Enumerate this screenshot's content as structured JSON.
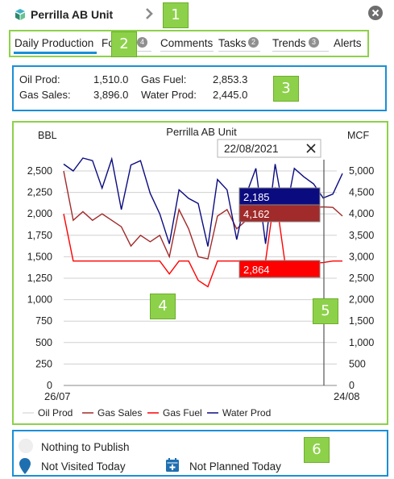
{
  "header": {
    "title": "Perrilla AB Unit",
    "icon": "cube-stack-icon",
    "chevron_icon": "chevron-right-icon",
    "close_icon": "close-circle-icon"
  },
  "callouts": [
    "1",
    "2",
    "3",
    "4",
    "5",
    "6"
  ],
  "tabs": [
    {
      "label": "Daily Production",
      "active": true
    },
    {
      "label": "Fo",
      "badge": "4"
    },
    {
      "label": "Comments"
    },
    {
      "label": "Tasks",
      "badge": "2"
    },
    {
      "label": "Trends",
      "badge": "3"
    },
    {
      "label": "Alerts"
    }
  ],
  "summary": {
    "oil_prod_label": "Oil Prod:",
    "oil_prod_value": "1,510.0",
    "gas_fuel_label": "Gas Fuel:",
    "gas_fuel_value": "2,853.3",
    "gas_sales_label": "Gas Sales:",
    "gas_sales_value": "3,896.0",
    "water_prod_label": "Water Prod:",
    "water_prod_value": "2,445.0"
  },
  "chart_data": {
    "type": "line",
    "title": "Perrilla AB Unit",
    "ylabel_left": "BBL",
    "ylabel_right": "MCF",
    "x_start_label": "26/07",
    "x_end_label": "24/08",
    "x_count": 30,
    "ylim_left": [
      0,
      2500
    ],
    "ylim_right": [
      0,
      5000
    ],
    "left_ticks": [
      "0",
      "250",
      "500",
      "750",
      "1,000",
      "1,250",
      "1,500",
      "1,750",
      "2,000",
      "2,250",
      "2,500"
    ],
    "right_ticks": [
      "0",
      "500",
      "1,000",
      "1,500",
      "2,000",
      "2,500",
      "3,000",
      "3,500",
      "4,000",
      "4,500",
      "5,000"
    ],
    "grid": true,
    "legend_position": "bottom",
    "crosshair": {
      "date": "22/08/2021",
      "index": 27
    },
    "tooltips": [
      {
        "series": "Water Prod",
        "value": "2,185",
        "color": "#0b0b80"
      },
      {
        "series": "Gas Sales",
        "value": "4,162",
        "color": "#a12a2a"
      },
      {
        "series": "Gas Fuel",
        "value": "2,864",
        "color": "#ff0000"
      }
    ],
    "series": [
      {
        "name": "Oil Prod",
        "axis": "left",
        "color": "#dddddd",
        "values": []
      },
      {
        "name": "Gas Sales",
        "axis": "right",
        "color": "#a12a2a",
        "values": [
          5000,
          3850,
          4050,
          3850,
          4000,
          3850,
          3700,
          3250,
          3500,
          3350,
          3500,
          3000,
          4100,
          3650,
          3000,
          2950,
          3950,
          4100,
          3650,
          3850,
          4200,
          3900,
          4600,
          4100,
          4200,
          4000,
          4150,
          4162,
          4150,
          3950
        ]
      },
      {
        "name": "Gas Fuel",
        "axis": "right",
        "color": "#ff0000",
        "values": [
          4000,
          2900,
          2900,
          2900,
          2900,
          2900,
          2900,
          2900,
          2900,
          2900,
          2900,
          2600,
          2900,
          2900,
          2450,
          2300,
          2900,
          2900,
          2900,
          2900,
          2900,
          2900,
          4500,
          2900,
          2850,
          2850,
          2850,
          2864,
          2900,
          2900
        ]
      },
      {
        "name": "Water Prod",
        "axis": "left",
        "color": "#0b0b80",
        "values": [
          2580,
          2500,
          2650,
          2620,
          2300,
          2640,
          2050,
          2570,
          2620,
          2240,
          2000,
          1650,
          2280,
          2180,
          2120,
          1620,
          2400,
          2280,
          1700,
          2230,
          2530,
          1650,
          2580,
          1950,
          2530,
          2430,
          2350,
          2185,
          2230,
          2470
        ]
      }
    ]
  },
  "footer": {
    "publish_text": "Nothing to Publish",
    "publish_icon": "status-circle-icon",
    "visited_text": "Not Visited Today",
    "visited_icon": "location-pin-icon",
    "planned_text": "Not Planned Today",
    "planned_icon": "calendar-plus-icon"
  }
}
